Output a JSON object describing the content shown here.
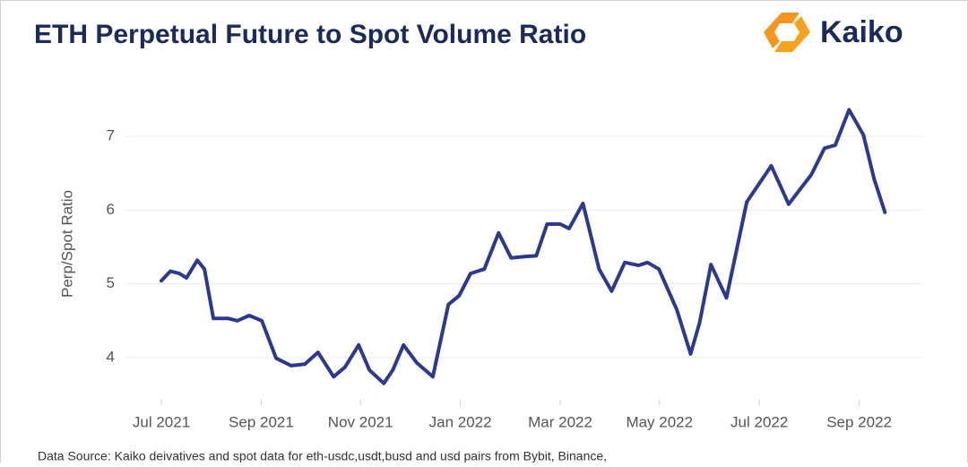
{
  "brand": "Kaiko",
  "footer": "Data Source: Kaiko deivatives and spot data for eth-usdc,usdt,busd and usd pairs from Bybit, Binance,",
  "chart_data": {
    "type": "line",
    "title": "ETH Perpetual Future to Spot Volume Ratio",
    "y_label": "Perp/Spot Ratio",
    "x": [
      2021.5,
      2021.515,
      2021.53,
      2021.542,
      2021.56,
      2021.572,
      2021.587,
      2021.612,
      2021.627,
      2021.647,
      2021.668,
      2021.692,
      2021.717,
      2021.74,
      2021.762,
      2021.788,
      2021.807,
      2021.83,
      2021.848,
      2021.872,
      2021.887,
      2021.905,
      2021.927,
      2021.954,
      2021.98,
      2021.998,
      2022.017,
      2022.04,
      2022.064,
      2022.085,
      2022.107,
      2022.127,
      2022.145,
      2022.167,
      2022.182,
      2022.205,
      2022.232,
      2022.253,
      2022.275,
      2022.298,
      2022.313,
      2022.332,
      2022.362,
      2022.385,
      2022.4,
      2022.419,
      2022.445,
      2022.479,
      2022.52,
      2022.549,
      2022.587,
      2022.609,
      2022.627,
      2022.65,
      2022.674,
      2022.692,
      2022.71
    ],
    "series": [
      {
        "name": "Perp/Spot Ratio",
        "color": "#2b3990",
        "values": [
          5.04,
          5.17,
          5.14,
          5.08,
          5.32,
          5.2,
          4.53,
          4.53,
          4.5,
          4.57,
          4.5,
          3.99,
          3.89,
          3.91,
          4.07,
          3.74,
          3.87,
          4.17,
          3.83,
          3.65,
          3.83,
          4.17,
          3.93,
          3.74,
          4.72,
          4.84,
          5.14,
          5.2,
          5.69,
          5.35,
          5.37,
          5.38,
          5.81,
          5.81,
          5.75,
          6.09,
          5.2,
          4.9,
          5.29,
          5.25,
          5.29,
          5.2,
          4.65,
          4.05,
          4.47,
          5.26,
          4.81,
          6.11,
          6.6,
          6.08,
          6.48,
          6.84,
          6.88,
          7.36,
          7.02,
          6.42,
          5.97
        ]
      }
    ],
    "xlim": [
      2021.44,
      2022.774
    ],
    "xticks": [
      {
        "value": 2021.5,
        "label": "Jul 2021"
      },
      {
        "value": 2021.667,
        "label": "Sep 2021"
      },
      {
        "value": 2021.833,
        "label": "Nov 2021"
      },
      {
        "value": 2022.0,
        "label": "Jan 2022"
      },
      {
        "value": 2022.167,
        "label": "Mar 2022"
      },
      {
        "value": 2022.333,
        "label": "May 2022"
      },
      {
        "value": 2022.5,
        "label": "Jul 2022"
      },
      {
        "value": 2022.667,
        "label": "Sep 2022"
      }
    ],
    "ylim": [
      3.5,
      7.5
    ],
    "yticks": [
      4,
      5,
      6,
      7
    ],
    "grid": true
  }
}
